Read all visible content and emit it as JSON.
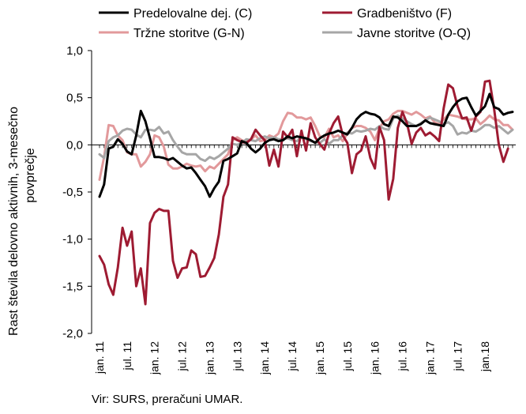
{
  "chart_data": {
    "type": "line",
    "ylabel_line1": "Rast števila delovno aktivnih, 3-mesečno",
    "ylabel_line2": "povprečje",
    "ylim": [
      -2.0,
      1.0
    ],
    "yticks": [
      "1,0",
      "0,5",
      "0,0",
      "-0,5",
      "-1,0",
      "-1,5",
      "-2,0"
    ],
    "ytick_values": [
      1.0,
      0.5,
      0.0,
      -0.5,
      -1.0,
      -1.5,
      -2.0
    ],
    "xtick_labels": [
      "jan. 11",
      "jul. 11",
      "jan. 12",
      "jul. 12",
      "jan. 13",
      "jul. 13",
      "jan. 14",
      "jul. 14",
      "jan. 15",
      "jul. 15",
      "jan. 16",
      "jul. 16",
      "jan. 17",
      "jul. 17",
      "jan.18"
    ],
    "legend_position": "top",
    "grid": false,
    "series": [
      {
        "name": "Predelovalne dej. (C)",
        "color": "#000000",
        "values": [
          -0.55,
          -0.42,
          -0.04,
          -0.02,
          0.06,
          0.01,
          -0.07,
          -0.1,
          0.1,
          0.36,
          0.25,
          0.07,
          -0.13,
          -0.13,
          -0.14,
          -0.16,
          -0.14,
          -0.18,
          -0.22,
          -0.25,
          -0.24,
          -0.3,
          -0.37,
          -0.44,
          -0.55,
          -0.46,
          -0.39,
          -0.17,
          -0.15,
          -0.12,
          -0.09,
          0.04,
          0.02,
          -0.04,
          -0.08,
          -0.04,
          0.02,
          0.05,
          0.06,
          0.04,
          0.05,
          0.09,
          0.07,
          0.09,
          0.08,
          0.07,
          0.05,
          0.02,
          0.07,
          0.1,
          0.12,
          0.13,
          0.15,
          0.13,
          0.11,
          0.18,
          0.27,
          0.32,
          0.35,
          0.33,
          0.32,
          0.29,
          0.22,
          0.2,
          0.3,
          0.29,
          0.25,
          0.2,
          0.2,
          0.2,
          0.22,
          0.26,
          0.23,
          0.22,
          0.21,
          0.2,
          0.32,
          0.4,
          0.46,
          0.49,
          0.5,
          0.4,
          0.31,
          0.36,
          0.41,
          0.54,
          0.4,
          0.38,
          0.32,
          0.34,
          0.35
        ]
      },
      {
        "name": "Gradbeništvo (F)",
        "color": "#9e1b32",
        "values": [
          -1.18,
          -1.27,
          -1.48,
          -1.59,
          -1.3,
          -0.88,
          -1.07,
          -0.92,
          -1.5,
          -1.31,
          -1.69,
          -0.83,
          -0.72,
          -0.68,
          -0.7,
          -0.7,
          -1.23,
          -1.41,
          -1.31,
          -1.3,
          -1.12,
          -1.16,
          -1.4,
          -1.39,
          -1.3,
          -1.2,
          -0.95,
          -0.55,
          -0.42,
          0.08,
          0.05,
          0.03,
          0.02,
          0.06,
          0.16,
          0.1,
          0.05,
          -0.22,
          -0.05,
          -0.23,
          0.14,
          0.08,
          0.16,
          -0.12,
          0.15,
          -0.06,
          0.23,
          0.08,
          0.01,
          -0.05,
          0.12,
          0.23,
          0.3,
          0.1,
          0.02,
          -0.3,
          -0.1,
          -0.06,
          0.09,
          -0.14,
          -0.25,
          0.19,
          0.05,
          -0.58,
          -0.36,
          0.18,
          0.35,
          0.23,
          0.01,
          0.13,
          0.18,
          0.1,
          0.13,
          0.09,
          0.04,
          0.39,
          0.64,
          0.6,
          0.41,
          0.28,
          0.29,
          0.15,
          0.3,
          0.35,
          0.67,
          0.68,
          0.37,
          0.0,
          -0.18,
          -0.04
        ]
      },
      {
        "name": "Tržne storitve (G-N)",
        "color": "#e2999b",
        "values": [
          -0.37,
          -0.13,
          0.21,
          0.2,
          0.1,
          0.05,
          -0.08,
          -0.1,
          -0.1,
          -0.23,
          -0.18,
          -0.1,
          0.1,
          0.08,
          -0.02,
          -0.21,
          -0.25,
          -0.25,
          -0.23,
          -0.2,
          -0.22,
          -0.23,
          -0.22,
          -0.28,
          -0.23,
          -0.25,
          -0.2,
          -0.15,
          -0.1,
          0.05,
          0.08,
          0.05,
          0.03,
          0.06,
          0.1,
          0.04,
          0.05,
          0.1,
          0.08,
          0.12,
          0.25,
          0.34,
          0.33,
          0.29,
          0.29,
          0.27,
          0.29,
          0.2,
          0.09,
          0.08,
          0.17,
          0.08,
          0.1,
          0.04,
          0.12,
          0.18,
          0.2,
          0.2,
          0.18,
          0.14,
          0.05,
          0.18,
          0.25,
          0.27,
          0.33,
          0.36,
          0.36,
          0.34,
          0.32,
          0.35,
          0.32,
          0.28,
          0.3,
          0.24,
          0.22,
          0.27,
          0.32,
          0.31,
          0.3,
          0.28,
          0.27,
          0.27,
          0.28,
          0.22,
          0.26,
          0.31,
          0.27,
          0.26,
          0.21,
          0.21,
          0.16
        ]
      },
      {
        "name": "Javne storitve (O-Q)",
        "color": "#a6a6a6",
        "values": [
          -0.1,
          -0.14,
          0.04,
          0.08,
          0.1,
          0.15,
          0.17,
          0.16,
          0.11,
          0.08,
          0.16,
          0.16,
          0.15,
          0.19,
          0.12,
          0.14,
          0.05,
          -0.02,
          -0.08,
          -0.1,
          -0.1,
          -0.1,
          -0.15,
          -0.17,
          -0.13,
          -0.15,
          -0.12,
          -0.08,
          -0.04,
          0.01,
          0.0,
          0.02,
          0.06,
          0.05,
          0.04,
          0.07,
          0.09,
          0.07,
          0.08,
          0.06,
          0.06,
          0.07,
          0.05,
          0.04,
          0.08,
          0.06,
          0.04,
          0.03,
          0.02,
          0.06,
          0.01,
          0.05,
          0.05,
          0.1,
          0.13,
          0.12,
          0.15,
          0.14,
          0.15,
          0.17,
          0.16,
          0.2,
          0.17,
          0.16,
          0.28,
          0.31,
          0.28,
          0.25,
          0.22,
          0.2,
          0.23,
          0.26,
          0.29,
          0.27,
          0.25,
          0.22,
          0.24,
          0.2,
          0.11,
          0.13,
          0.12,
          0.15,
          0.14,
          0.17,
          0.21,
          0.21,
          0.18,
          0.2,
          0.16,
          0.12,
          0.16
        ]
      }
    ]
  },
  "source_note": "Vir: SURS, preračuni UMAR."
}
